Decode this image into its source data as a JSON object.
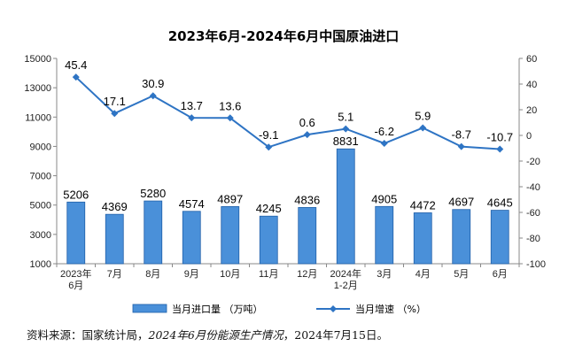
{
  "chart_data": {
    "type": "bar+line",
    "title": "2023年6月-2024年6月中国原油进口",
    "categories": [
      "2023年\n6月",
      "7月",
      "8月",
      "9月",
      "10月",
      "11月",
      "12月",
      "2024年\n1-2月",
      "3月",
      "4月",
      "5月",
      "6月"
    ],
    "series": [
      {
        "name": "当月进口量（万吨）",
        "type": "bar",
        "axis": "left",
        "values": [
          5206,
          4369,
          5280,
          4574,
          4897,
          4245,
          4836,
          8831,
          4905,
          4472,
          4697,
          4645
        ],
        "color": "#4a90d9"
      },
      {
        "name": "当月增速（%）",
        "type": "line",
        "axis": "right",
        "values": [
          45.4,
          17.1,
          30.9,
          13.7,
          13.6,
          -9.1,
          0.6,
          5.1,
          -6.2,
          5.9,
          -8.7,
          -10.7
        ],
        "color": "#2e74c4"
      }
    ],
    "bar_labels": [
      "5206",
      "4369",
      "5280",
      "4574",
      "4897",
      "4245",
      "4836",
      "8831",
      "4905",
      "4472",
      "4697",
      "4645"
    ],
    "line_labels": [
      "45.4",
      "17.1",
      "30.9",
      "13.7",
      "13.6",
      "-9.1",
      "0.6",
      "5.1",
      "-6.2",
      "5.9",
      "-8.7",
      "-10.7"
    ],
    "y_left": {
      "min": 1000,
      "max": 15000,
      "ticks": [
        "1000",
        "3000",
        "5000",
        "7000",
        "9000",
        "11000",
        "13000",
        "15000"
      ]
    },
    "y_right": {
      "min": -100,
      "max": 60,
      "ticks": [
        "-100",
        "-80",
        "-60",
        "-40",
        "-20",
        "0",
        "20",
        "40",
        "60"
      ]
    },
    "legend": {
      "position": "bottom",
      "items": [
        "当月进口量 （万吨）",
        "当月增速 （%）"
      ]
    },
    "grid": false
  },
  "source": {
    "prefix": "资料来源：国家统计局，",
    "italic": "2024年6月份能源生产情况",
    "suffix": "，2024年7月15日。"
  }
}
